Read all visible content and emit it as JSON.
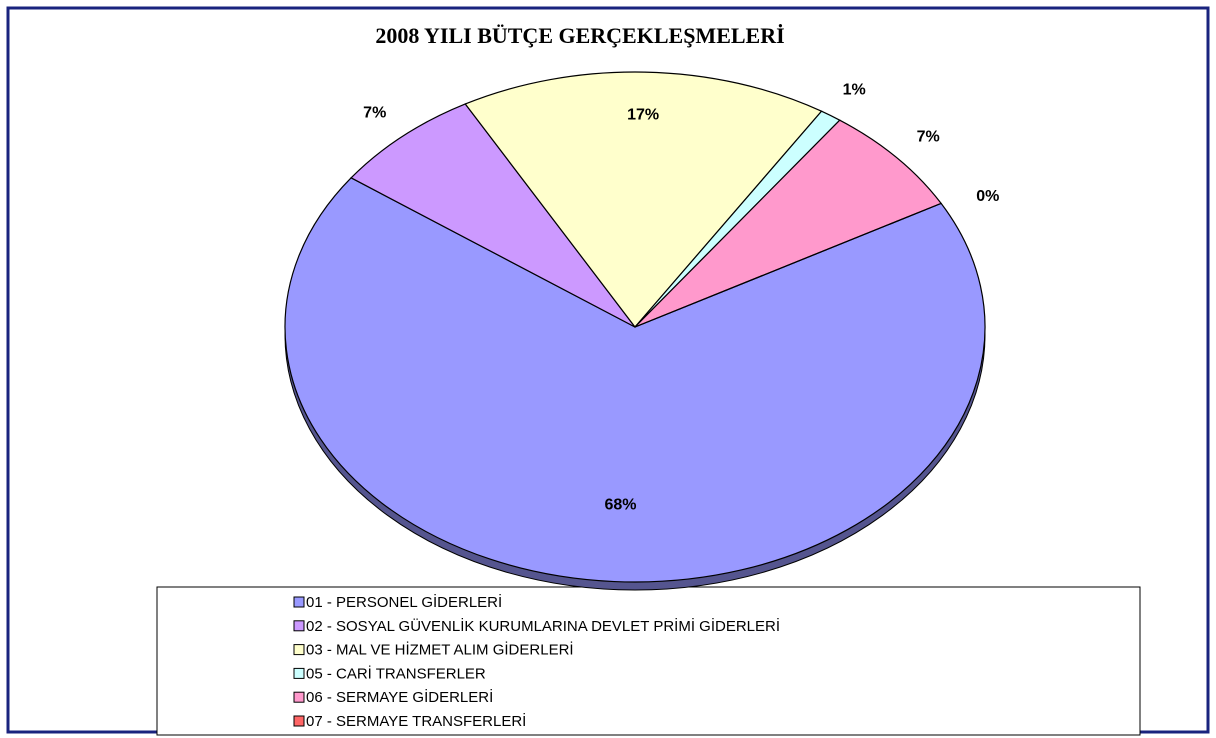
{
  "chart_data": {
    "type": "pie",
    "title": "2008 YILI BÜTÇE GERÇEKLEŞMELERİ",
    "categories": [
      "01 - PERSONEL GİDERLERİ",
      "02 - SOSYAL GÜVENLİK KURUMLARINA DEVLET PRİMİ GİDERLERİ",
      "03 - MAL VE HİZMET ALIM GİDERLERİ",
      "05 - CARİ TRANSFERLER",
      "06 - SERMAYE GİDERLERİ",
      "07 - SERMAYE TRANSFERLERİ"
    ],
    "values": [
      68,
      7,
      17,
      1,
      7,
      0
    ],
    "value_labels": [
      "68%",
      "7%",
      "17%",
      "1%",
      "7%",
      "0%"
    ],
    "colors": [
      "#9999ff",
      "#cc99ff",
      "#ffffcc",
      "#ccffff",
      "#ff99cc",
      "#ff6666"
    ],
    "legend": "bottom"
  }
}
